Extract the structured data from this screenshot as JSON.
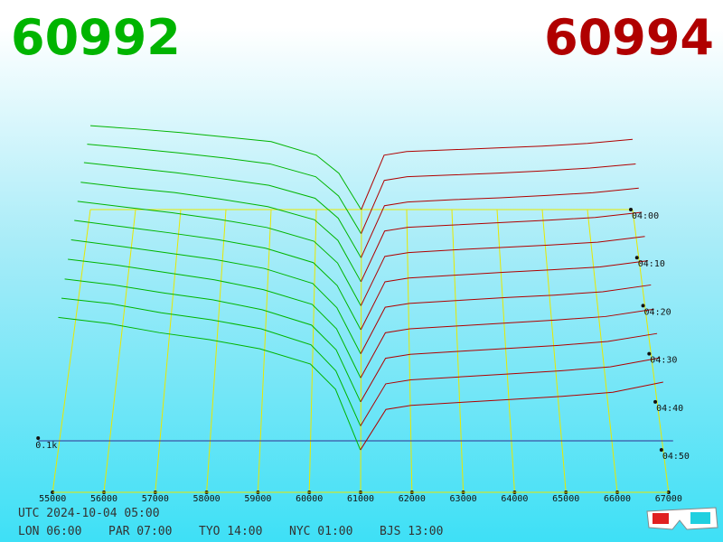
{
  "header": {
    "bid": "60992",
    "ask": "60994"
  },
  "chart_data": {
    "type": "depth3d",
    "xlim": [
      55000,
      67000
    ],
    "xticks": [
      55000,
      56000,
      57000,
      58000,
      59000,
      60000,
      61000,
      62000,
      63000,
      64000,
      65000,
      66000,
      67000
    ],
    "time_ticks": [
      "04:00",
      "04:10",
      "04:20",
      "04:30",
      "04:40",
      "04:50"
    ],
    "depth_tick": {
      "value": 100,
      "label": "0.1k"
    },
    "bids": {
      "color": "#00b400",
      "prices": [
        55000,
        56000,
        57000,
        58000,
        59000,
        60000,
        60500,
        60992
      ],
      "slices": [
        [
          185,
          178,
          170,
          160,
          150,
          120,
          80,
          0
        ],
        [
          195,
          186,
          176,
          165,
          152,
          124,
          82,
          0
        ],
        [
          205,
          194,
          183,
          170,
          156,
          128,
          85,
          0
        ],
        [
          212,
          200,
          190,
          176,
          160,
          132,
          88,
          0
        ],
        [
          220,
          208,
          196,
          182,
          165,
          136,
          90,
          0
        ],
        [
          228,
          215,
          202,
          188,
          170,
          140,
          92,
          0
        ],
        [
          235,
          222,
          208,
          194,
          176,
          145,
          95,
          0
        ],
        [
          242,
          230,
          215,
          200,
          180,
          150,
          100,
          0
        ],
        [
          248,
          236,
          220,
          206,
          186,
          155,
          105,
          0
        ],
        [
          255,
          244,
          226,
          212,
          194,
          162,
          110,
          0
        ],
        [
          262,
          250,
          232,
          218,
          200,
          170,
          120,
          0
        ]
      ]
    },
    "asks": {
      "color": "#b00000",
      "prices": [
        60994,
        61500,
        62000,
        63000,
        64000,
        65000,
        66000,
        67000
      ],
      "slices": [
        [
          0,
          120,
          128,
          132,
          136,
          140,
          146,
          155
        ],
        [
          0,
          116,
          124,
          128,
          132,
          137,
          143,
          152
        ],
        [
          0,
          112,
          120,
          125,
          129,
          134,
          140,
          150
        ],
        [
          0,
          108,
          116,
          121,
          126,
          131,
          137,
          148
        ],
        [
          0,
          104,
          112,
          118,
          123,
          128,
          134,
          146
        ],
        [
          0,
          100,
          108,
          114,
          120,
          125,
          131,
          144
        ],
        [
          0,
          96,
          104,
          110,
          116,
          121,
          128,
          142
        ],
        [
          0,
          92,
          100,
          106,
          112,
          118,
          125,
          140
        ],
        [
          0,
          88,
          96,
          102,
          108,
          114,
          122,
          138
        ],
        [
          0,
          84,
          92,
          98,
          104,
          110,
          118,
          136
        ],
        [
          0,
          80,
          88,
          94,
          100,
          106,
          114,
          134
        ]
      ]
    }
  },
  "footer": {
    "utc": "UTC 2024-10-04 05:00",
    "clocks": [
      "LON 06:00",
      "PAR 07:00",
      "TYO 14:00",
      "NYC 01:00",
      "BJS 13:00"
    ]
  }
}
